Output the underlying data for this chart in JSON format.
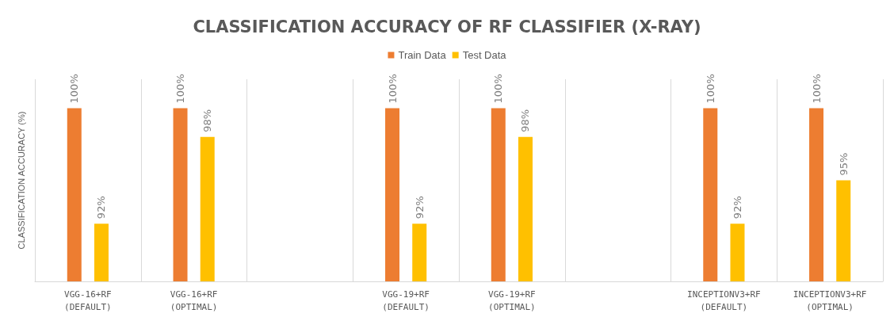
{
  "chart_data": {
    "type": "bar",
    "title": "CLASSIFICATION ACCURACY OF RF CLASSIFIER (X-RAY)",
    "ylabel": "CLASSIFICATION ACCURACY (%)",
    "categories": [
      "VGG-16+RF\n(DEFAULT)",
      "VGG-16+RF\n(OPTIMAL)",
      null,
      "VGG-19+RF\n(DEFAULT)",
      "VGG-19+RF\n(OPTIMAL)",
      null,
      "INCEPTIONV3+RF\n(DEFAULT)",
      "INCEPTIONV3+RF\n(OPTIMAL)"
    ],
    "series": [
      {
        "name": "Train Data",
        "color": "#ed7d31",
        "values": [
          100,
          100,
          null,
          100,
          100,
          null,
          100,
          100
        ],
        "value_labels": [
          "100%",
          "100%",
          null,
          "100%",
          "100%",
          null,
          "100%",
          "100%"
        ]
      },
      {
        "name": "Test Data",
        "color": "#ffc000",
        "values": [
          92,
          98,
          null,
          92,
          98,
          null,
          92,
          95
        ],
        "value_labels": [
          "92%",
          "98%",
          null,
          "92%",
          "98%",
          null,
          "92%",
          "95%"
        ]
      }
    ],
    "ylim": [
      88,
      102
    ],
    "grid": "x",
    "legend": "top",
    "tick_labels": "x"
  }
}
